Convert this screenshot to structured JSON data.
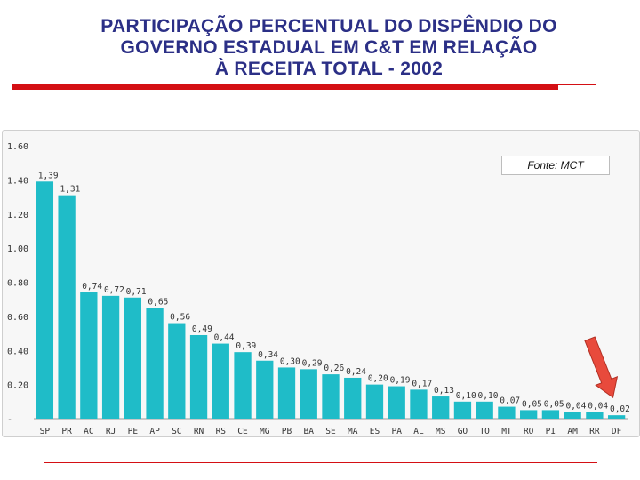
{
  "page": {
    "title_lines": [
      "PARTICIPAÇÃO PERCENTUAL DO DISPÊNDIO DO",
      "GOVERNO ESTADUAL EM C&T EM RELAÇÃO",
      "À RECEITA TOTAL - 2002"
    ],
    "source": "Fonte: MCT"
  },
  "colors": {
    "title": "#2b2f86",
    "accent_rule": "#d40f14",
    "bar": "#1fbcc8",
    "arrow": "#e84a3c"
  },
  "icons": {
    "highlight_arrow": "red-arrow-icon"
  },
  "chart_data": {
    "type": "bar",
    "title": "PARTICIPAÇÃO PERCENTUAL DO DISPÊNDIO DO GOVERNO ESTADUAL EM C&T EM RELAÇÃO À RECEITA TOTAL - 2002",
    "xlabel": "",
    "ylabel": "",
    "ylim": [
      0,
      1.6
    ],
    "yticks": [
      0,
      0.2,
      0.4,
      0.6,
      0.8,
      1.0,
      1.2,
      1.4,
      1.6
    ],
    "ytick_labels": [
      "-",
      "0.20",
      "0.40",
      "0.60",
      "0.80",
      "1.00",
      "1.20",
      "1.40",
      "1.60"
    ],
    "categories": [
      "SP",
      "PR",
      "AC",
      "RJ",
      "PE",
      "AP",
      "SC",
      "RN",
      "RS",
      "CE",
      "MG",
      "PB",
      "BA",
      "SE",
      "MA",
      "ES",
      "PA",
      "AL",
      "MS",
      "GO",
      "TO",
      "MT",
      "RO",
      "PI",
      "AM",
      "RR",
      "DF"
    ],
    "values": [
      1.39,
      1.31,
      0.74,
      0.72,
      0.71,
      0.65,
      0.56,
      0.49,
      0.44,
      0.39,
      0.34,
      0.3,
      0.29,
      0.26,
      0.24,
      0.2,
      0.19,
      0.17,
      0.13,
      0.1,
      0.1,
      0.07,
      0.05,
      0.05,
      0.04,
      0.04,
      0.02
    ],
    "value_labels": [
      "1,39",
      "1,31",
      "0,74",
      "0,72",
      "0,71",
      "0,65",
      "0,56",
      "0,49",
      "0,44",
      "0,39",
      "0,34",
      "0,30",
      "0,29",
      "0,26",
      "0,24",
      "0,20",
      "0,19",
      "0,17",
      "0,13",
      "0,10",
      "0,10",
      "0,07",
      "0,05",
      "0,05",
      "0,04",
      "0,04",
      "0,02"
    ],
    "legend": "none",
    "annotation": "arrow pointing to DF"
  }
}
